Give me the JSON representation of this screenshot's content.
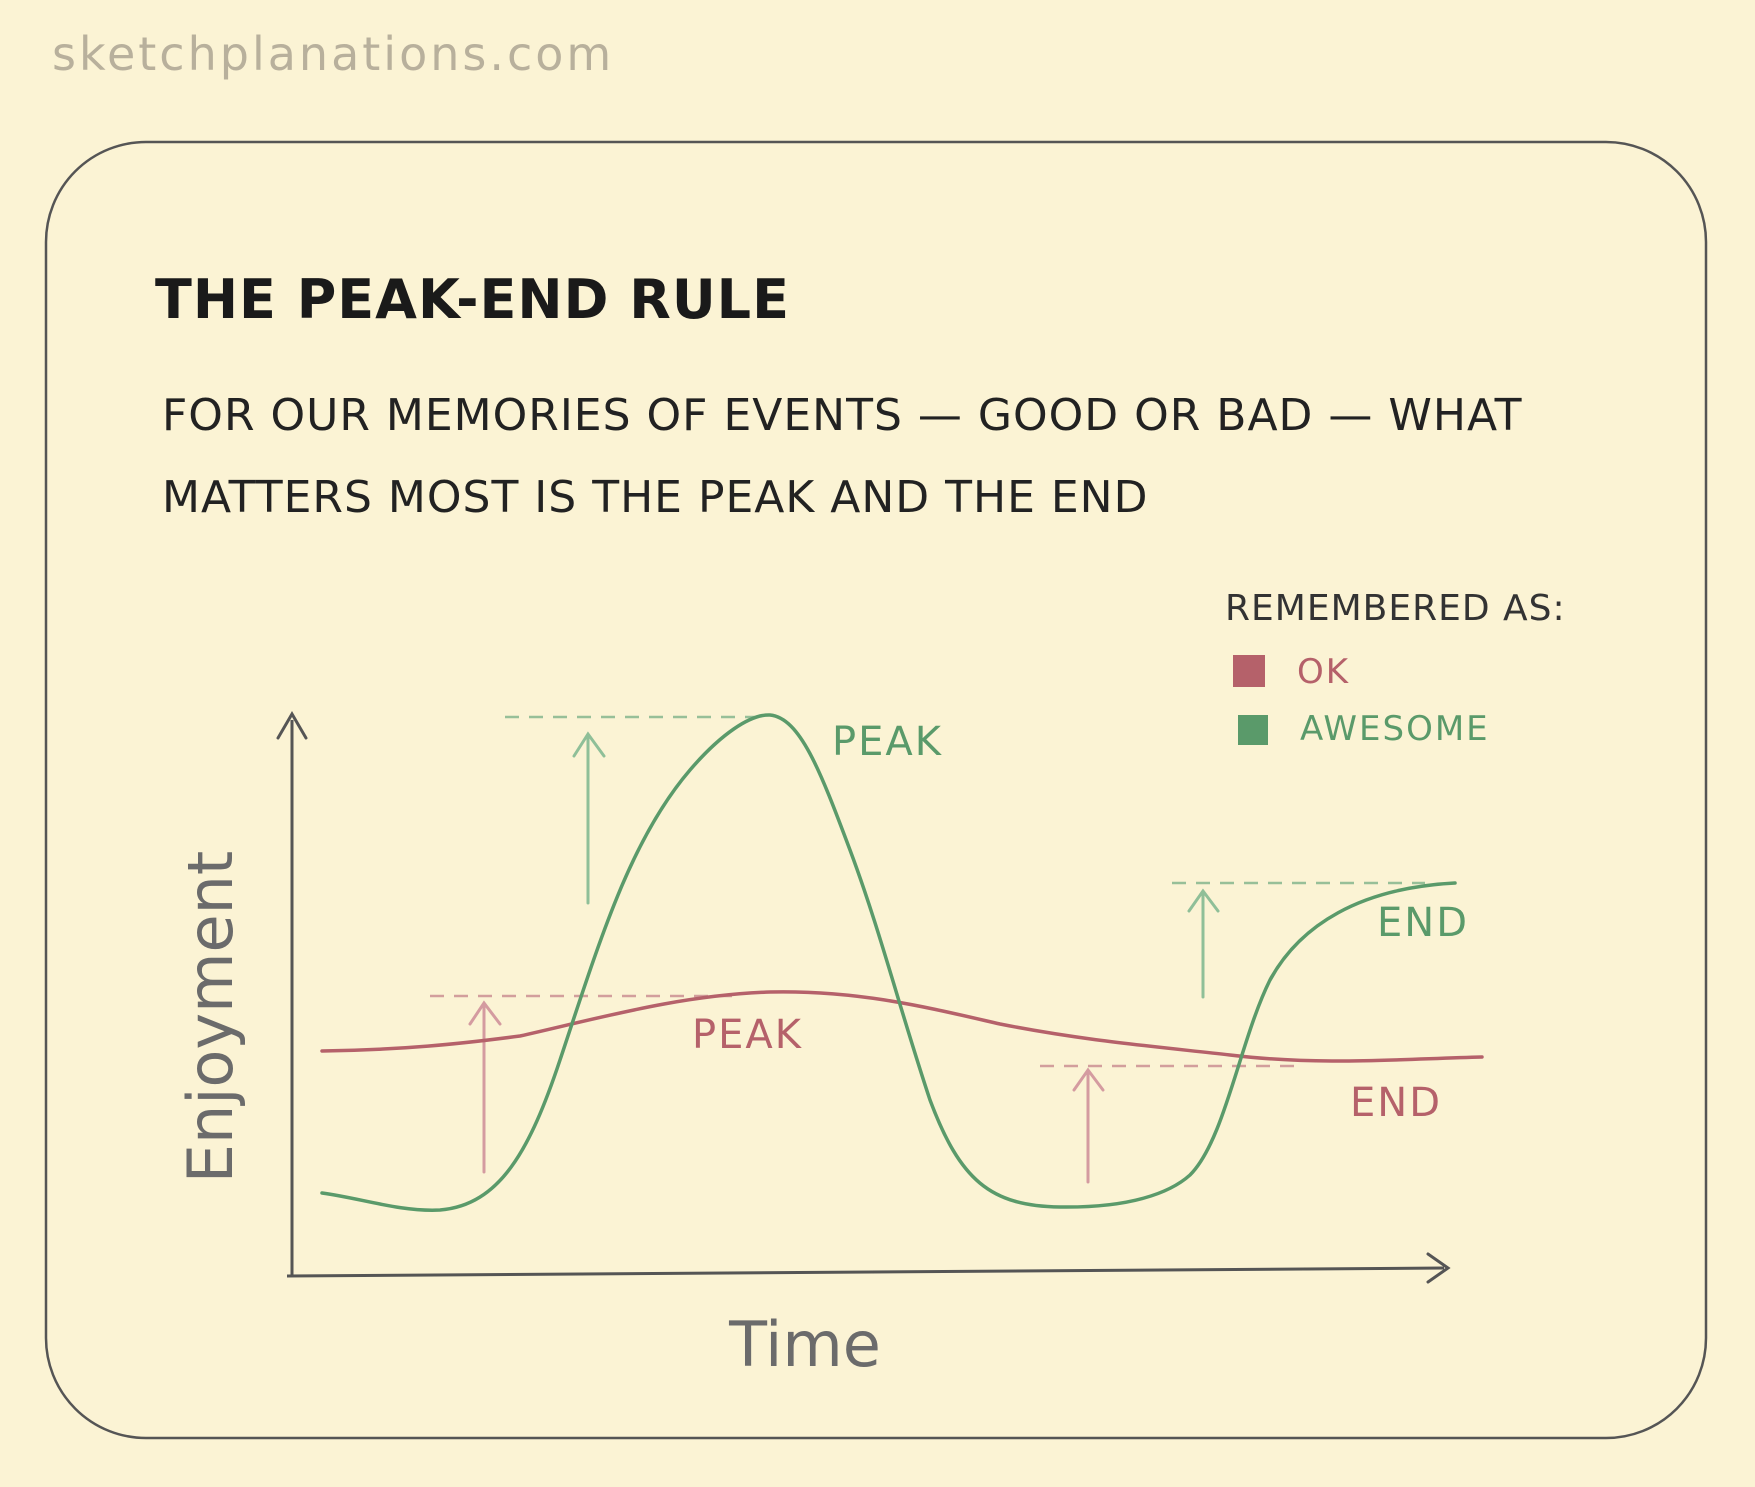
{
  "site": "sketchplanations.com",
  "title": "THE PEAK-END RULE",
  "subtitle_line1": "FOR OUR MEMORIES OF EVENTS — GOOD OR BAD — WHAT",
  "subtitle_line2": "MATTERS MOST IS THE PEAK AND THE END",
  "legend": {
    "title": "REMEMBERED AS:",
    "items": [
      {
        "label": "OK",
        "color": "#b5616a"
      },
      {
        "label": "AWESOME",
        "color": "#5a9a6a"
      }
    ]
  },
  "curves": {
    "ok": {
      "peak_label": "PEAK",
      "end_label": "END",
      "color": "#b5616a"
    },
    "awesome": {
      "peak_label": "PEAK",
      "end_label": "END",
      "color": "#5a9a6a"
    }
  },
  "axes": {
    "x_label": "Time",
    "y_label": "Enjoyment"
  }
}
